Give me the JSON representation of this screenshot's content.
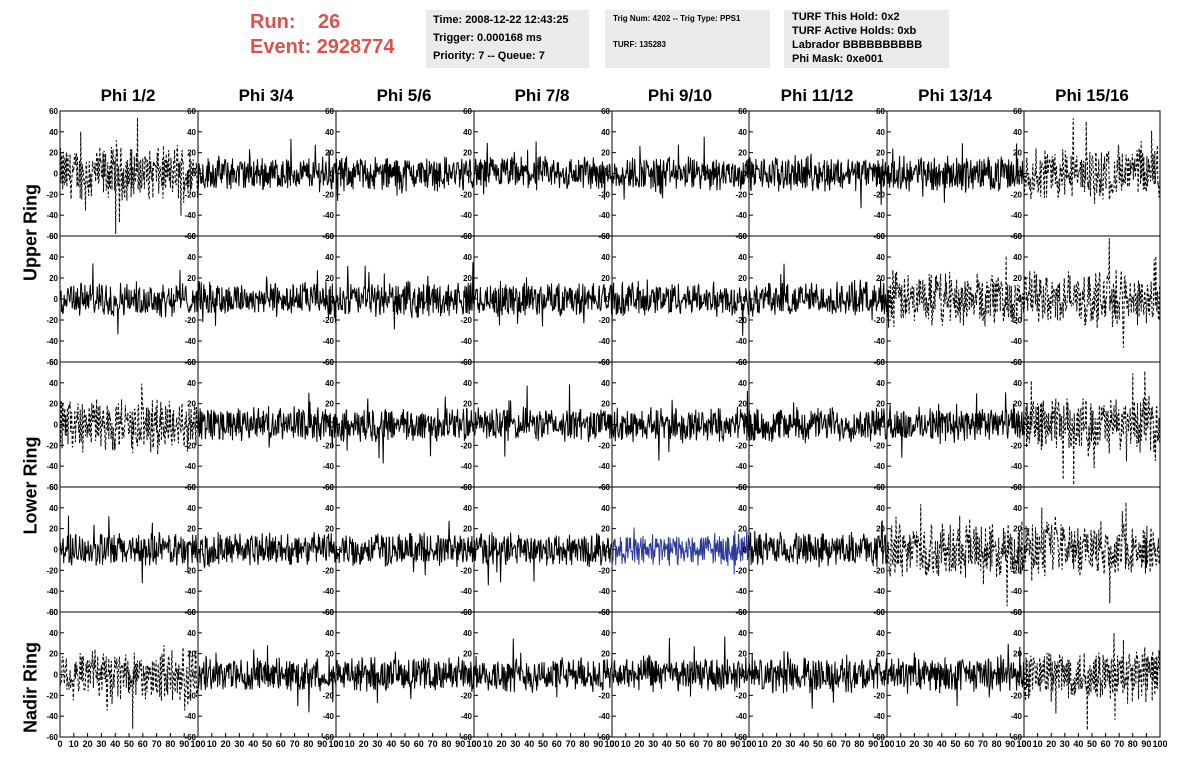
{
  "header": {
    "run_label": "Run:",
    "run_value": "26",
    "event_label": "Event:",
    "event_value": "2928774"
  },
  "time_panel": {
    "time": "Time: 2008-12-22 12:43:25",
    "trigger": "Trigger: 0.000168 ms",
    "priority": "Priority: 7 -- Queue: 7"
  },
  "trig_panel": {
    "trig": "Trig Num: 4202 -- Trig Type: PPS1",
    "turf": "TURF: 135283"
  },
  "turf_panel": {
    "hold": "TURF This Hold: 0x2",
    "active": "TURF Active Holds: 0xb",
    "labrador": "Labrador BBBBBBBBBB",
    "phimask": "Phi Mask: 0xe001"
  },
  "columns": [
    "Phi 1/2",
    "Phi 3/4",
    "Phi 5/6",
    "Phi 7/8",
    "Phi 9/10",
    "Phi 11/12",
    "Phi 13/14",
    "Phi 15/16"
  ],
  "row_labels": {
    "upper": "Upper Ring",
    "lower": "Lower Ring",
    "nadir": "Nadir Ring"
  },
  "chart_data": {
    "type": "line",
    "description_grid": "5 rows x 8 columns of waveform panels",
    "ylim": [
      -60,
      60
    ],
    "xlim": [
      0,
      100
    ],
    "y_ticks": [
      60,
      40,
      20,
      0,
      -20,
      -40,
      -60
    ],
    "y_tick_labels": [
      "60",
      "40",
      "20",
      "0",
      "-20",
      "-40",
      "-60"
    ],
    "x_ticks": [
      0,
      10,
      20,
      30,
      40,
      50,
      60,
      70,
      80,
      90,
      100
    ],
    "x_tick_labels": [
      "0",
      "10",
      "20",
      "30",
      "40",
      "50",
      "60",
      "70",
      "80",
      "90",
      "100"
    ],
    "styles": [
      [
        "dashed",
        "solid",
        "solid",
        "solid",
        "solid",
        "solid",
        "solid",
        "dashed"
      ],
      [
        "solid",
        "solid",
        "solid",
        "solid",
        "solid",
        "solid",
        "dashed",
        "dashed"
      ],
      [
        "dashed",
        "solid",
        "solid",
        "solid",
        "solid",
        "solid",
        "solid",
        "dashed"
      ],
      [
        "solid",
        "solid",
        "solid",
        "solid",
        "blue",
        "solid",
        "dashed",
        "dashed"
      ],
      [
        "dashed",
        "solid",
        "solid",
        "solid",
        "solid",
        "solid",
        "solid",
        "dashed"
      ]
    ],
    "colors": {
      "trace": "#000000",
      "highlight": "#2b3a9c",
      "run_text": "#d9534f",
      "info_bg": "#ebebeb"
    }
  }
}
